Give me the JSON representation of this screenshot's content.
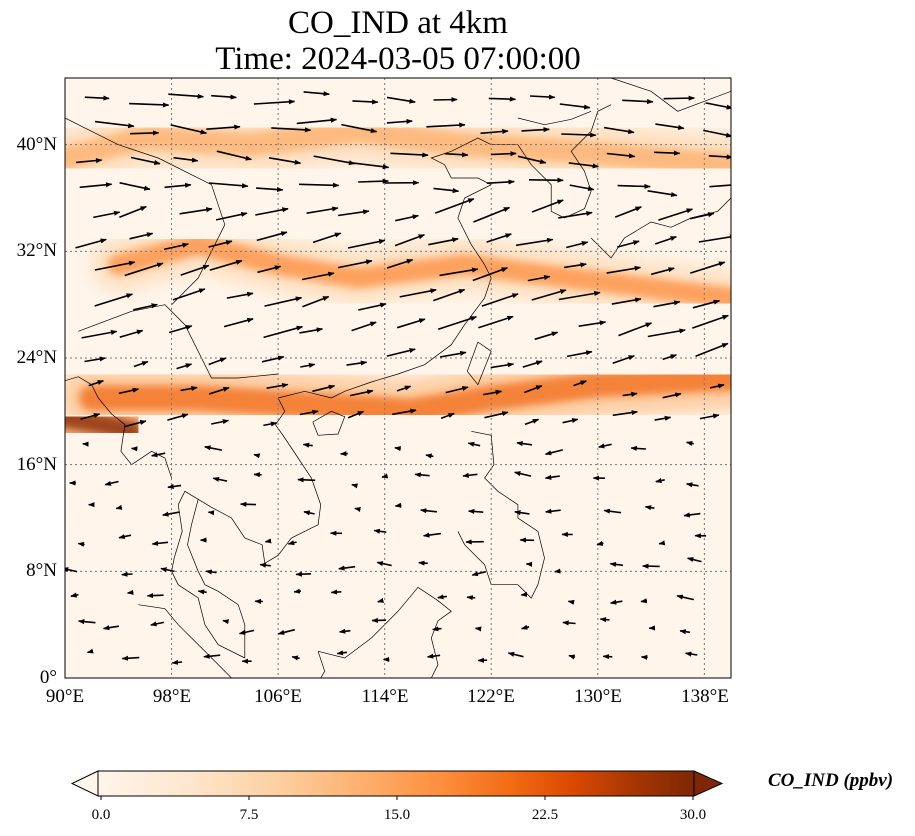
{
  "title_line1": "CO_IND at 4km",
  "title_line2": "Time: 2024-03-05 07:00:00",
  "map": {
    "lon_range": [
      90,
      140
    ],
    "lat_range": [
      0,
      45
    ],
    "lat_ticks": [
      "0°",
      "8°N",
      "16°N",
      "24°N",
      "32°N",
      "40°N"
    ],
    "lon_ticks": [
      "90°E",
      "98°E",
      "106°E",
      "114°E",
      "122°E",
      "130°E",
      "138°E"
    ],
    "gridlines": true
  },
  "colorbar": {
    "label": "CO_IND (ppbv)",
    "min": 0.0,
    "max": 30.0,
    "ticks": [
      "0.0",
      "7.5",
      "15.0",
      "22.5",
      "30.0"
    ],
    "colormap": [
      "#fff5eb",
      "#fee6ce",
      "#fdd0a2",
      "#fdae6b",
      "#fd8d3c",
      "#f16913",
      "#d94801",
      "#a63603",
      "#7f2704"
    ],
    "extend": "both"
  },
  "plume_bands": [
    {
      "name": "northern-band",
      "level": 0.35
    },
    {
      "name": "central-band",
      "level": 0.45
    },
    {
      "name": "southern-band",
      "level": 0.6
    },
    {
      "name": "myanmar-hotspot",
      "level": 0.95
    }
  ],
  "wind_field": {
    "north_of_18N": "strong westerly",
    "south_of_18N": "weak easterly"
  }
}
